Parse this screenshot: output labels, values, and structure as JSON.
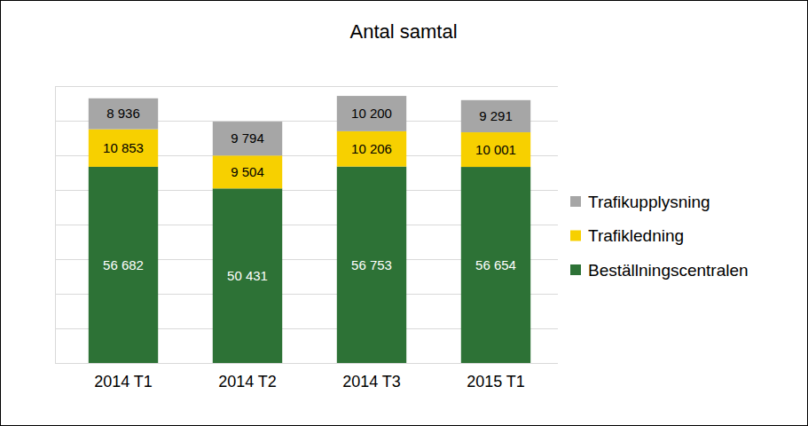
{
  "chart_data": {
    "type": "bar",
    "title": "Antal samtal",
    "categories": [
      "2014 T1",
      "2014 T2",
      "2014 T3",
      "2015 T1"
    ],
    "series": [
      {
        "name": "Beställningscentralen",
        "color": "#2d7236",
        "values": [
          56682,
          50431,
          56753,
          56654
        ],
        "value_labels": [
          "56 682",
          "50 431",
          "56 753",
          "56 654"
        ]
      },
      {
        "name": "Trafikledning",
        "color": "#f7d000",
        "values": [
          10853,
          9504,
          10206,
          10001
        ],
        "value_labels": [
          "10 853",
          "9 504",
          "10 206",
          "10 001"
        ]
      },
      {
        "name": "Trafikupplysning",
        "color": "#a6a6a6",
        "values": [
          8936,
          9794,
          10200,
          9291
        ],
        "value_labels": [
          "8 936",
          "9 794",
          "10 200",
          "9 291"
        ]
      }
    ],
    "ylim": [
      0,
      80000
    ],
    "yticks": [
      0,
      10000,
      20000,
      30000,
      40000,
      50000,
      60000,
      70000,
      80000
    ],
    "stacked": true,
    "grid": true,
    "data_labels": true,
    "tick_labels": "x",
    "legend": "right"
  }
}
